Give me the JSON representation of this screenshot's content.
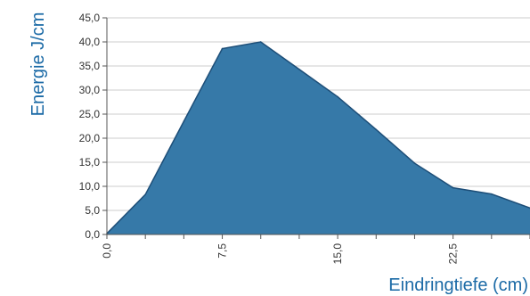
{
  "chart_data": {
    "type": "area",
    "xlabel": "Eindringtiefe (cm)",
    "ylabel": "Energie J/cm",
    "x": [
      0,
      2.5,
      5,
      7.5,
      10,
      12.5,
      15,
      17.5,
      20,
      22.5,
      25,
      27.5
    ],
    "y_ticks": [
      "0,0",
      "5,0",
      "10,0",
      "15,0",
      "20,0",
      "25,0",
      "30,0",
      "35,0",
      "40,0",
      "45,0"
    ],
    "x_ticks": [
      "0,0",
      "7,5",
      "15,0",
      "22,5"
    ],
    "series": [
      {
        "values": [
          0.2,
          8.3,
          23.5,
          38.6,
          40.0,
          34.3,
          28.6,
          21.8,
          14.8,
          9.7,
          8.4,
          5.5
        ]
      }
    ],
    "xlim": [
      0,
      27.5
    ],
    "ylim": [
      0,
      45
    ],
    "grid": true,
    "colors": {
      "fill": "#3679a8",
      "line": "#1d4e78",
      "grid": "#cccccc",
      "text": "#1b6aa6"
    }
  }
}
